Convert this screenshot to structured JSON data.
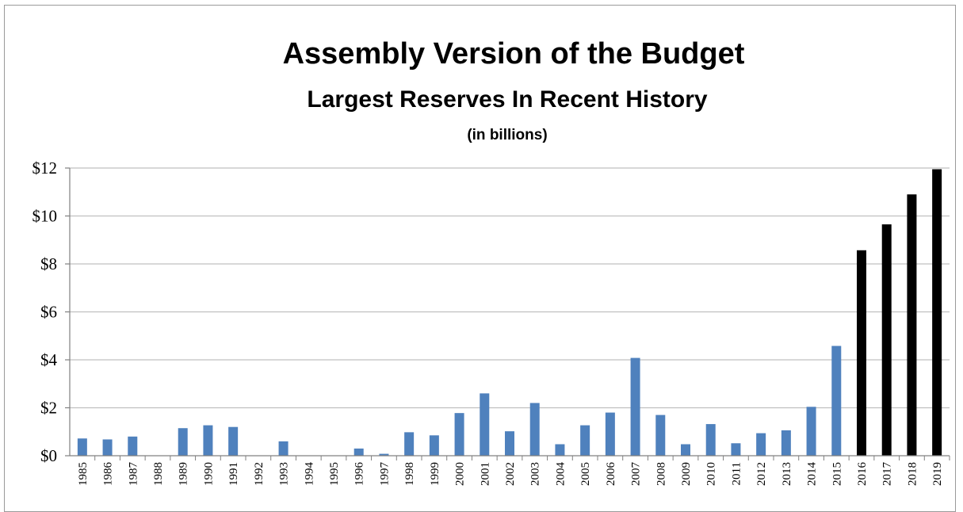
{
  "colors": {
    "historical_bar": "#4f81bd",
    "projected_bar": "#000000",
    "gridline": "#c0c0c0",
    "axis": "#808080"
  },
  "chart_data": {
    "type": "bar",
    "title": "Assembly Version of the Budget",
    "subtitle": "Largest Reserves In Recent History",
    "unit_note": "(in billions)",
    "xlabel": "",
    "ylabel": "",
    "ylim": [
      0,
      12
    ],
    "grid": true,
    "legend": "none",
    "y_ticks": [
      "$0",
      "$2",
      "$4",
      "$6",
      "$8",
      "$10",
      "$12"
    ],
    "y_tick_values": [
      0,
      2,
      4,
      6,
      8,
      10,
      12
    ],
    "categories": [
      "1985",
      "1986",
      "1987",
      "1988",
      "1989",
      "1990",
      "1991",
      "1992",
      "1993",
      "1994",
      "1995",
      "1996",
      "1997",
      "1998",
      "1999",
      "2000",
      "2001",
      "2002",
      "2003",
      "2004",
      "2005",
      "2006",
      "2007",
      "2008",
      "2009",
      "2010",
      "2011",
      "2012",
      "2013",
      "2014",
      "2015",
      "2016",
      "2017",
      "2018",
      "2019"
    ],
    "values": [
      0.72,
      0.68,
      0.8,
      0,
      1.15,
      1.27,
      1.2,
      0,
      0.6,
      0,
      0,
      0.3,
      0.08,
      0.98,
      0.85,
      1.78,
      2.6,
      1.02,
      2.2,
      0.48,
      1.27,
      1.8,
      4.08,
      1.7,
      0.48,
      1.32,
      0.52,
      0.94,
      1.06,
      2.04,
      4.58,
      8.57,
      9.65,
      10.9,
      11.95
    ],
    "bar_colors": [
      "blue",
      "blue",
      "blue",
      "blue",
      "blue",
      "blue",
      "blue",
      "blue",
      "blue",
      "blue",
      "blue",
      "blue",
      "blue",
      "blue",
      "blue",
      "blue",
      "blue",
      "blue",
      "blue",
      "blue",
      "blue",
      "blue",
      "blue",
      "blue",
      "blue",
      "blue",
      "blue",
      "blue",
      "blue",
      "blue",
      "blue",
      "black",
      "black",
      "black",
      "black"
    ]
  }
}
